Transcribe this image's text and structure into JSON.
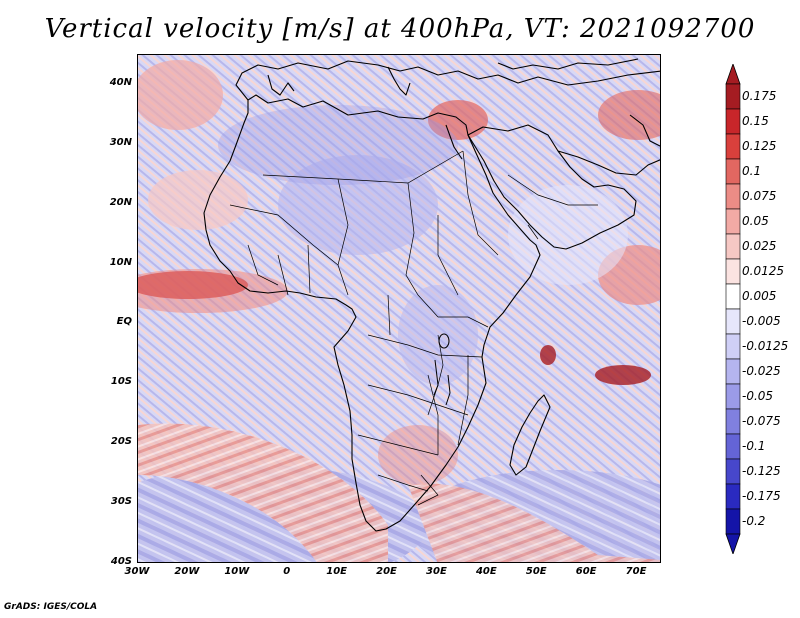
{
  "title": "Vertical velocity [m/s] at 400hPa, VT: 2021092700",
  "map": {
    "region": "Africa",
    "lat_ticks": [
      "40N",
      "30N",
      "20N",
      "10N",
      "EQ",
      "10S",
      "20S",
      "30S",
      "40S"
    ],
    "lon_ticks": [
      "30W",
      "20W",
      "10W",
      "0",
      "10E",
      "20E",
      "30E",
      "40E",
      "50E",
      "60E",
      "70E"
    ],
    "lat_range": [
      -40,
      45
    ],
    "lon_range": [
      -30,
      75
    ]
  },
  "colorbar": {
    "labels": [
      "0.175",
      "0.15",
      "0.125",
      "0.1",
      "0.075",
      "0.05",
      "0.025",
      "0.0125",
      "0.005",
      "-0.005",
      "-0.0125",
      "-0.025",
      "-0.05",
      "-0.075",
      "-0.1",
      "-0.125",
      "-0.175",
      "-0.2"
    ],
    "colors": [
      "#a51c22",
      "#c8262a",
      "#d9403c",
      "#e26761",
      "#ec8c86",
      "#f2aaa5",
      "#f6c8c4",
      "#fbe3e1",
      "#ffffff",
      "#e6e6fb",
      "#cfcff6",
      "#b5b5ef",
      "#9b9be8",
      "#8080df",
      "#6464d6",
      "#4747cb",
      "#2a2ac0",
      "#1414a8"
    ]
  },
  "footer": "GrADS: IGES/COLA"
}
